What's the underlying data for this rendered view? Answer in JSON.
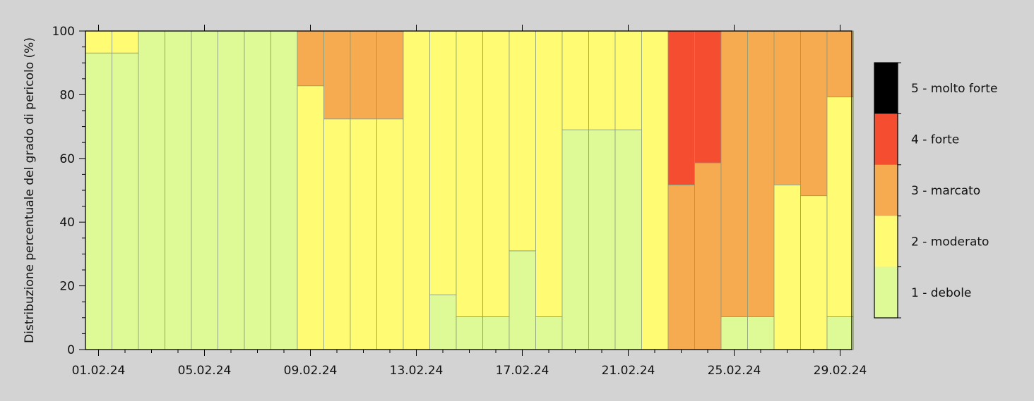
{
  "chart_data": {
    "type": "bar",
    "stacked": true,
    "title": "",
    "ylabel": "Distribuzione percentuale del grado di pericolo (%)",
    "xlabel": "",
    "ylim": [
      0,
      100
    ],
    "yticks": [
      0,
      20,
      40,
      60,
      80,
      100
    ],
    "xticklabels": [
      "01.02.24",
      "05.02.24",
      "09.02.24",
      "13.02.24",
      "17.02.24",
      "21.02.24",
      "25.02.24",
      "29.02.24"
    ],
    "xtick_day_index": [
      0,
      4,
      8,
      12,
      16,
      20,
      24,
      28
    ],
    "categories": [
      "01.02.24",
      "02.02.24",
      "03.02.24",
      "04.02.24",
      "05.02.24",
      "06.02.24",
      "07.02.24",
      "08.02.24",
      "09.02.24",
      "10.02.24",
      "11.02.24",
      "12.02.24",
      "13.02.24",
      "14.02.24",
      "15.02.24",
      "16.02.24",
      "17.02.24",
      "18.02.24",
      "19.02.24",
      "20.02.24",
      "21.02.24",
      "22.02.24",
      "23.02.24",
      "24.02.24",
      "25.02.24",
      "26.02.24",
      "27.02.24",
      "28.02.24",
      "29.02.24"
    ],
    "series": [
      {
        "name": "1 - debole",
        "color": "#ddfa96",
        "values": [
          93.1,
          93.1,
          100,
          100,
          100,
          100,
          100,
          100,
          0,
          0,
          0,
          0,
          0,
          17.2,
          10.3,
          10.3,
          31.0,
          10.3,
          69.0,
          69.0,
          69.0,
          0,
          0,
          0,
          10.3,
          10.3,
          0,
          0,
          10.3
        ]
      },
      {
        "name": "2 - moderato",
        "color": "#fffc73",
        "values": [
          6.9,
          6.9,
          0,
          0,
          0,
          0,
          0,
          0,
          82.8,
          72.4,
          72.4,
          72.4,
          100,
          82.8,
          89.7,
          89.7,
          69.0,
          89.7,
          31.0,
          31.0,
          31.0,
          100,
          0,
          0,
          0,
          0,
          51.7,
          48.3,
          69.0
        ]
      },
      {
        "name": "3 - marcato",
        "color": "#f6ab51",
        "values": [
          0,
          0,
          0,
          0,
          0,
          0,
          0,
          0,
          17.2,
          27.6,
          27.6,
          27.6,
          0,
          0,
          0,
          0,
          0,
          0,
          0,
          0,
          0,
          0,
          51.7,
          58.6,
          89.7,
          89.7,
          48.3,
          51.7,
          20.7
        ]
      },
      {
        "name": "4 - forte",
        "color": "#f54d30",
        "values": [
          0,
          0,
          0,
          0,
          0,
          0,
          0,
          0,
          0,
          0,
          0,
          0,
          0,
          0,
          0,
          0,
          0,
          0,
          0,
          0,
          0,
          0,
          48.3,
          41.4,
          0,
          0,
          0,
          0,
          0
        ]
      },
      {
        "name": "5 - molto forte",
        "color": "#000000",
        "values": [
          0,
          0,
          0,
          0,
          0,
          0,
          0,
          0,
          0,
          0,
          0,
          0,
          0,
          0,
          0,
          0,
          0,
          0,
          0,
          0,
          0,
          0,
          0,
          0,
          0,
          0,
          0,
          0,
          0
        ]
      }
    ],
    "legend": {
      "placement": "right",
      "orientation": "vertical colorbar"
    },
    "grid": false,
    "colors": {
      "background": "#d3d3d3",
      "bar_edge": "#8a9a7a",
      "axis": "#000000"
    }
  }
}
